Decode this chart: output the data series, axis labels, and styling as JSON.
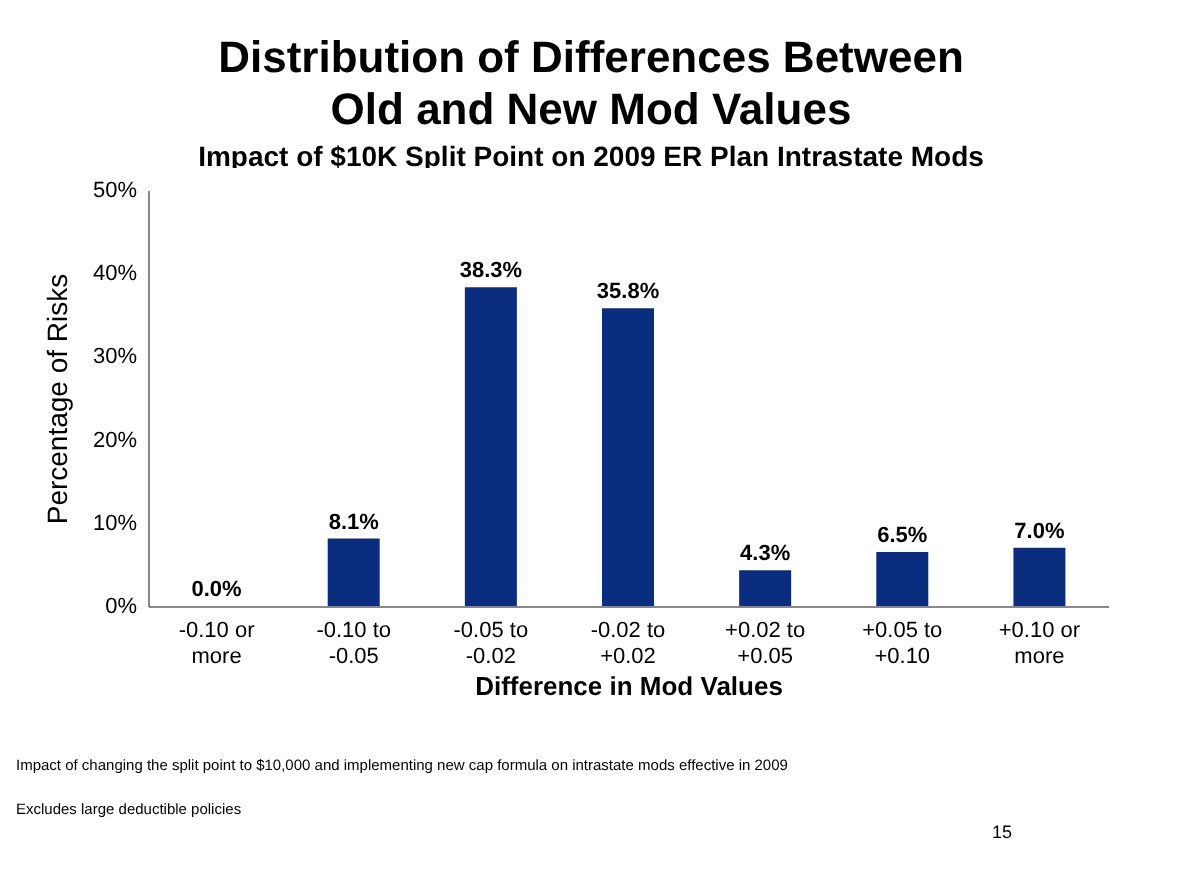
{
  "chart_data": {
    "type": "bar",
    "title": "Distribution of Differences Between Old and New Mod Values",
    "subtitle": "Impact of $10K Split Point on 2009 ER Plan Intrastate Mods",
    "xlabel": "Difference in Mod Values",
    "ylabel": "Percentage  of  Risks",
    "categories": [
      "-0.10 or more",
      "-0.10 to -0.05",
      "-0.05 to -0.02",
      "-0.02 to +0.02",
      "+0.02 to +0.05",
      "+0.05 to +0.10",
      "+0.10 or more"
    ],
    "values": [
      0.0,
      8.1,
      38.3,
      35.8,
      4.3,
      6.5,
      7.0
    ],
    "value_labels": [
      "0.0%",
      "8.1%",
      "38.3%",
      "35.8%",
      "4.3%",
      "6.5%",
      "7.0%"
    ],
    "color": "#0b2d7f",
    "ylim": [
      0,
      50
    ],
    "yticks": [
      {
        "value": 0,
        "label": "0%"
      },
      {
        "value": 10,
        "label": "10%"
      },
      {
        "value": 20,
        "label": "20%"
      },
      {
        "value": 30,
        "label": "30%"
      },
      {
        "value": 40,
        "label": "40%"
      },
      {
        "value": 50,
        "label": "50%"
      }
    ],
    "grid": false,
    "annotations": [
      "Impact of changing the split point to $10,000 and implementing new cap formula on intrastate mods effective in 2009",
      "Excludes large deductible policies",
      "15"
    ]
  }
}
